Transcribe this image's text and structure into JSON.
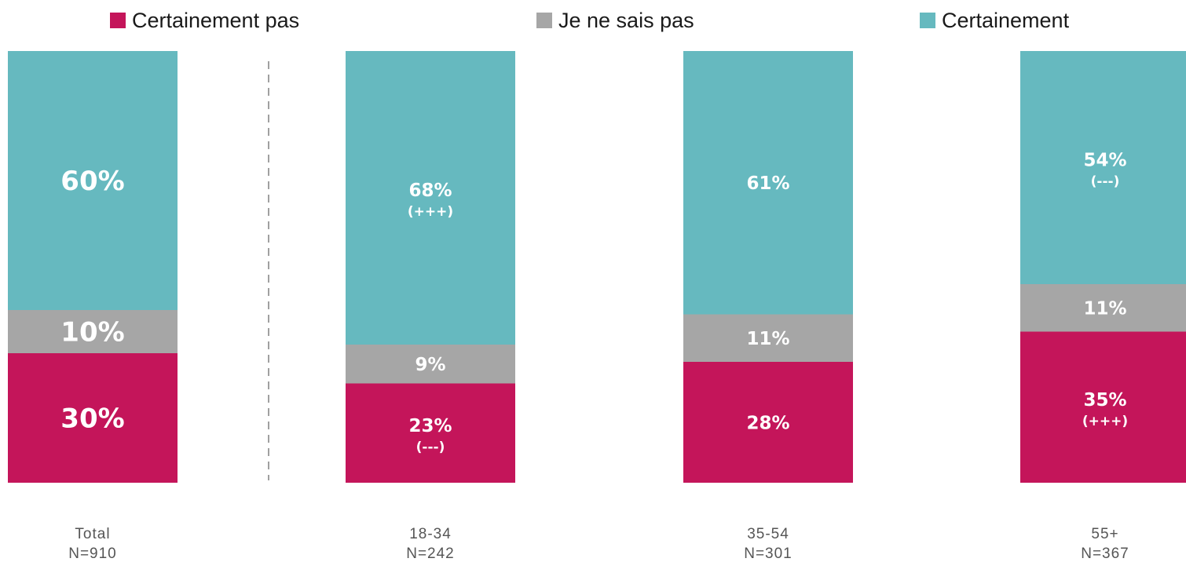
{
  "chart_data": {
    "type": "bar",
    "stacked": true,
    "percent": true,
    "categories": [
      "Total",
      "18-34",
      "35-54",
      "55+"
    ],
    "category_samples": [
      "N=910",
      "N=242",
      "N=301",
      "N=367"
    ],
    "series": [
      {
        "name": "Certainement pas",
        "color": "#c4155a",
        "values": [
          30,
          23,
          28,
          35
        ],
        "labels": [
          "30%",
          "23%",
          "28%",
          "35%"
        ],
        "annotations": [
          "",
          "(---)",
          "",
          "(+++)"
        ]
      },
      {
        "name": "Je ne sais pas",
        "color": "#a6a6a6",
        "values": [
          10,
          9,
          11,
          11
        ],
        "labels": [
          "10%",
          "9%",
          "11%",
          "11%"
        ],
        "annotations": [
          "",
          "",
          "",
          ""
        ]
      },
      {
        "name": "Certainement",
        "color": "#66b9bf",
        "values": [
          60,
          68,
          61,
          54
        ],
        "labels": [
          "60%",
          "68%",
          "61%",
          "54%"
        ],
        "annotations": [
          "",
          "(+++)",
          "",
          "(---)"
        ]
      }
    ],
    "legend_position": "top",
    "separator_after_first": true,
    "ylim": [
      0,
      100
    ],
    "grid": false
  }
}
